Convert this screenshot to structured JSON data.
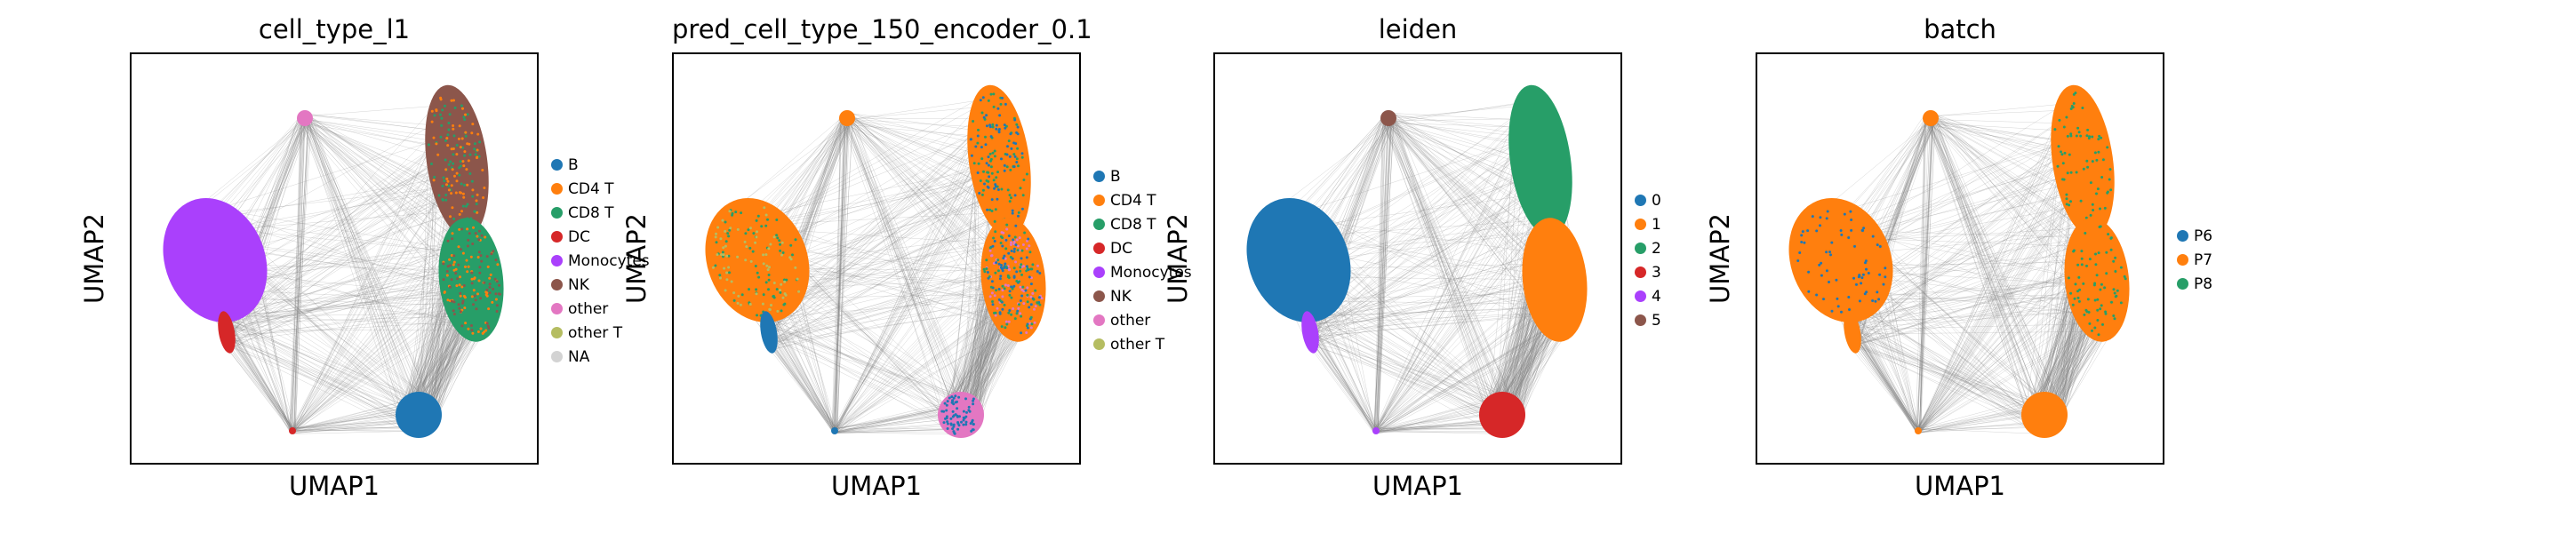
{
  "chart_data": [
    {
      "type": "scatter",
      "title": "cell_type_l1",
      "xlabel": "UMAP1",
      "ylabel": "UMAP2",
      "grid": false,
      "legend_position": "right",
      "edges_color": "#808080",
      "legend": [
        {
          "label": "B",
          "color": "#1f77b4"
        },
        {
          "label": "CD4 T",
          "color": "#ff7f0e"
        },
        {
          "label": "CD8 T",
          "color": "#279e68"
        },
        {
          "label": "DC",
          "color": "#d62728"
        },
        {
          "label": "Monocytes",
          "color": "#aa40fc"
        },
        {
          "label": "NK",
          "color": "#8c564b"
        },
        {
          "label": "other",
          "color": "#e377c2"
        },
        {
          "label": "other T",
          "color": "#b5bd61"
        },
        {
          "label": "NA",
          "color": "#d3d3d3"
        }
      ],
      "clusters": [
        {
          "name": "right-upper",
          "fill": "#8c564b",
          "mix": [
            "#279e68",
            "#ff7f0e"
          ]
        },
        {
          "name": "right-lower",
          "fill": "#279e68",
          "mix": [
            "#ff7f0e",
            "#8c564b"
          ]
        },
        {
          "name": "left",
          "fill": "#aa40fc",
          "mix": []
        },
        {
          "name": "left-tail",
          "fill": "#d62728",
          "mix": []
        },
        {
          "name": "bottom",
          "fill": "#1f77b4",
          "mix": []
        },
        {
          "name": "top",
          "fill": "#e377c2",
          "mix": []
        },
        {
          "name": "bottom-left",
          "fill": "#d62728",
          "mix": []
        }
      ]
    },
    {
      "type": "scatter",
      "title": "pred_cell_type_150_encoder_0.1",
      "xlabel": "UMAP1",
      "ylabel": "UMAP2",
      "grid": false,
      "legend_position": "right",
      "edges_color": "#808080",
      "legend": [
        {
          "label": "B",
          "color": "#1f77b4"
        },
        {
          "label": "CD4 T",
          "color": "#ff7f0e"
        },
        {
          "label": "CD8 T",
          "color": "#279e68"
        },
        {
          "label": "DC",
          "color": "#d62728"
        },
        {
          "label": "Monocytes",
          "color": "#aa40fc"
        },
        {
          "label": "NK",
          "color": "#8c564b"
        },
        {
          "label": "other",
          "color": "#e377c2"
        },
        {
          "label": "other T",
          "color": "#b5bd61"
        }
      ],
      "clusters": [
        {
          "name": "right-upper",
          "fill": "#ff7f0e",
          "mix": [
            "#279e68",
            "#1f77b4"
          ]
        },
        {
          "name": "right-lower",
          "fill": "#ff7f0e",
          "mix": [
            "#e377c2",
            "#1f77b4",
            "#279e68"
          ]
        },
        {
          "name": "left",
          "fill": "#ff7f0e",
          "mix": [
            "#279e68",
            "#b5bd61"
          ]
        },
        {
          "name": "left-tail",
          "fill": "#1f77b4",
          "mix": []
        },
        {
          "name": "bottom",
          "fill": "#e377c2",
          "mix": [
            "#1f77b4"
          ]
        },
        {
          "name": "top",
          "fill": "#ff7f0e",
          "mix": []
        },
        {
          "name": "bottom-left",
          "fill": "#1f77b4",
          "mix": []
        }
      ]
    },
    {
      "type": "scatter",
      "title": "leiden",
      "xlabel": "UMAP1",
      "ylabel": "UMAP2",
      "grid": false,
      "legend_position": "right",
      "edges_color": "#808080",
      "legend": [
        {
          "label": "0",
          "color": "#1f77b4"
        },
        {
          "label": "1",
          "color": "#ff7f0e"
        },
        {
          "label": "2",
          "color": "#279e68"
        },
        {
          "label": "3",
          "color": "#d62728"
        },
        {
          "label": "4",
          "color": "#aa40fc"
        },
        {
          "label": "5",
          "color": "#8c564b"
        }
      ],
      "clusters": [
        {
          "name": "right-upper",
          "fill": "#279e68",
          "mix": []
        },
        {
          "name": "right-lower",
          "fill": "#ff7f0e",
          "mix": []
        },
        {
          "name": "left",
          "fill": "#1f77b4",
          "mix": []
        },
        {
          "name": "left-tail",
          "fill": "#aa40fc",
          "mix": []
        },
        {
          "name": "bottom",
          "fill": "#d62728",
          "mix": []
        },
        {
          "name": "top",
          "fill": "#8c564b",
          "mix": []
        },
        {
          "name": "bottom-left",
          "fill": "#aa40fc",
          "mix": []
        }
      ]
    },
    {
      "type": "scatter",
      "title": "batch",
      "xlabel": "UMAP1",
      "ylabel": "UMAP2",
      "grid": false,
      "legend_position": "right",
      "edges_color": "#808080",
      "legend": [
        {
          "label": "P6",
          "color": "#1f77b4"
        },
        {
          "label": "P7",
          "color": "#ff7f0e"
        },
        {
          "label": "P8",
          "color": "#279e68"
        }
      ],
      "clusters": [
        {
          "name": "right-upper",
          "fill": "#ff7f0e",
          "mix": [
            "#279e68"
          ]
        },
        {
          "name": "right-lower",
          "fill": "#ff7f0e",
          "mix": [
            "#279e68"
          ]
        },
        {
          "name": "left",
          "fill": "#ff7f0e",
          "mix": [
            "#1f77b4"
          ]
        },
        {
          "name": "left-tail",
          "fill": "#ff7f0e",
          "mix": []
        },
        {
          "name": "bottom",
          "fill": "#ff7f0e",
          "mix": []
        },
        {
          "name": "top",
          "fill": "#ff7f0e",
          "mix": []
        },
        {
          "name": "bottom-left",
          "fill": "#ff7f0e",
          "mix": []
        }
      ]
    }
  ]
}
